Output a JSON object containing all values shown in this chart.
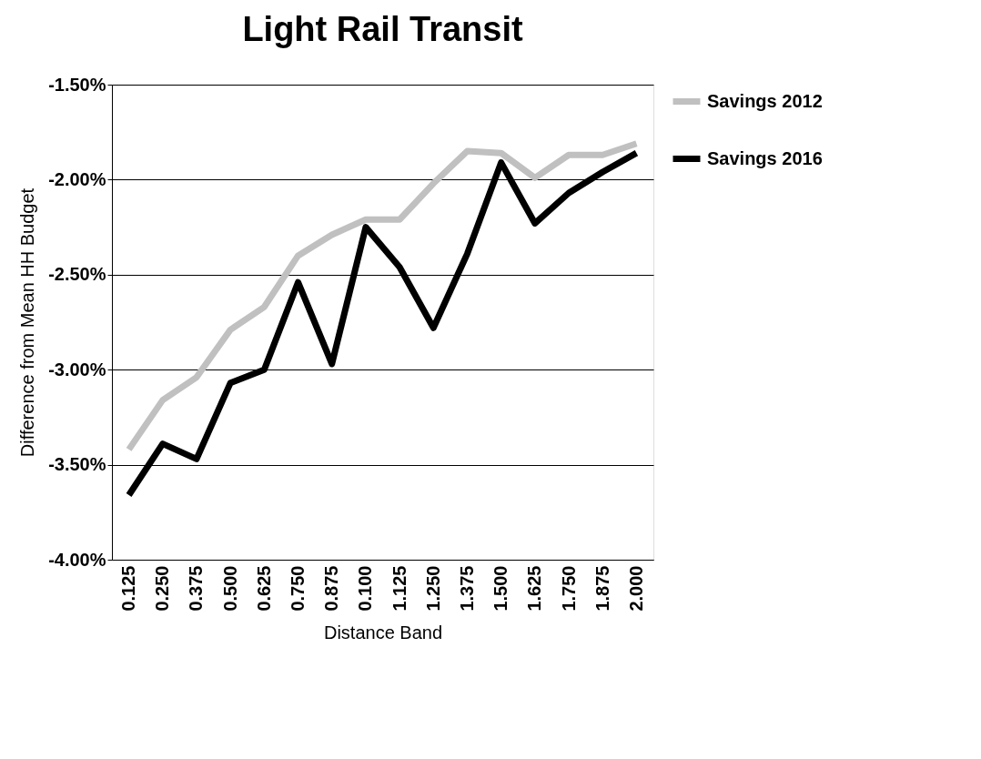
{
  "chart_data": {
    "type": "line",
    "title": "Light Rail Transit",
    "xlabel": "Distance Band",
    "ylabel": "Difference from Mean HH Budget",
    "categories": [
      "0.125",
      "0.250",
      "0.375",
      "0.500",
      "0.625",
      "0.750",
      "0.875",
      "0.100",
      "1.125",
      "1.250",
      "1.375",
      "1.500",
      "1.625",
      "1.750",
      "1.875",
      "2.000"
    ],
    "series": [
      {
        "name": "Savings 2012",
        "color": "#c0c0c0",
        "values": [
          -3.42,
          -3.16,
          -3.04,
          -2.79,
          -2.67,
          -2.4,
          -2.29,
          -2.21,
          -2.21,
          -2.02,
          -1.85,
          -1.86,
          -1.99,
          -1.87,
          -1.87,
          -1.81
        ]
      },
      {
        "name": "Savings 2016",
        "color": "#000000",
        "values": [
          -3.66,
          -3.39,
          -3.47,
          -3.07,
          -3.0,
          -2.54,
          -2.97,
          -2.25,
          -2.46,
          -2.78,
          -2.39,
          -1.91,
          -2.23,
          -2.07,
          -1.96,
          -1.86
        ]
      }
    ],
    "ylim": [
      -4.0,
      -1.5
    ],
    "yticks": [
      {
        "value": -4.0,
        "label": "-4.00%"
      },
      {
        "value": -3.5,
        "label": "-3.50%"
      },
      {
        "value": -3.0,
        "label": "-3.00%"
      },
      {
        "value": -2.5,
        "label": "-2.50%"
      },
      {
        "value": -2.0,
        "label": "-2.00%"
      },
      {
        "value": -1.5,
        "label": "-1.50%"
      }
    ],
    "grid": "y",
    "legend": "right",
    "marker": "none",
    "line_style": "solid"
  }
}
